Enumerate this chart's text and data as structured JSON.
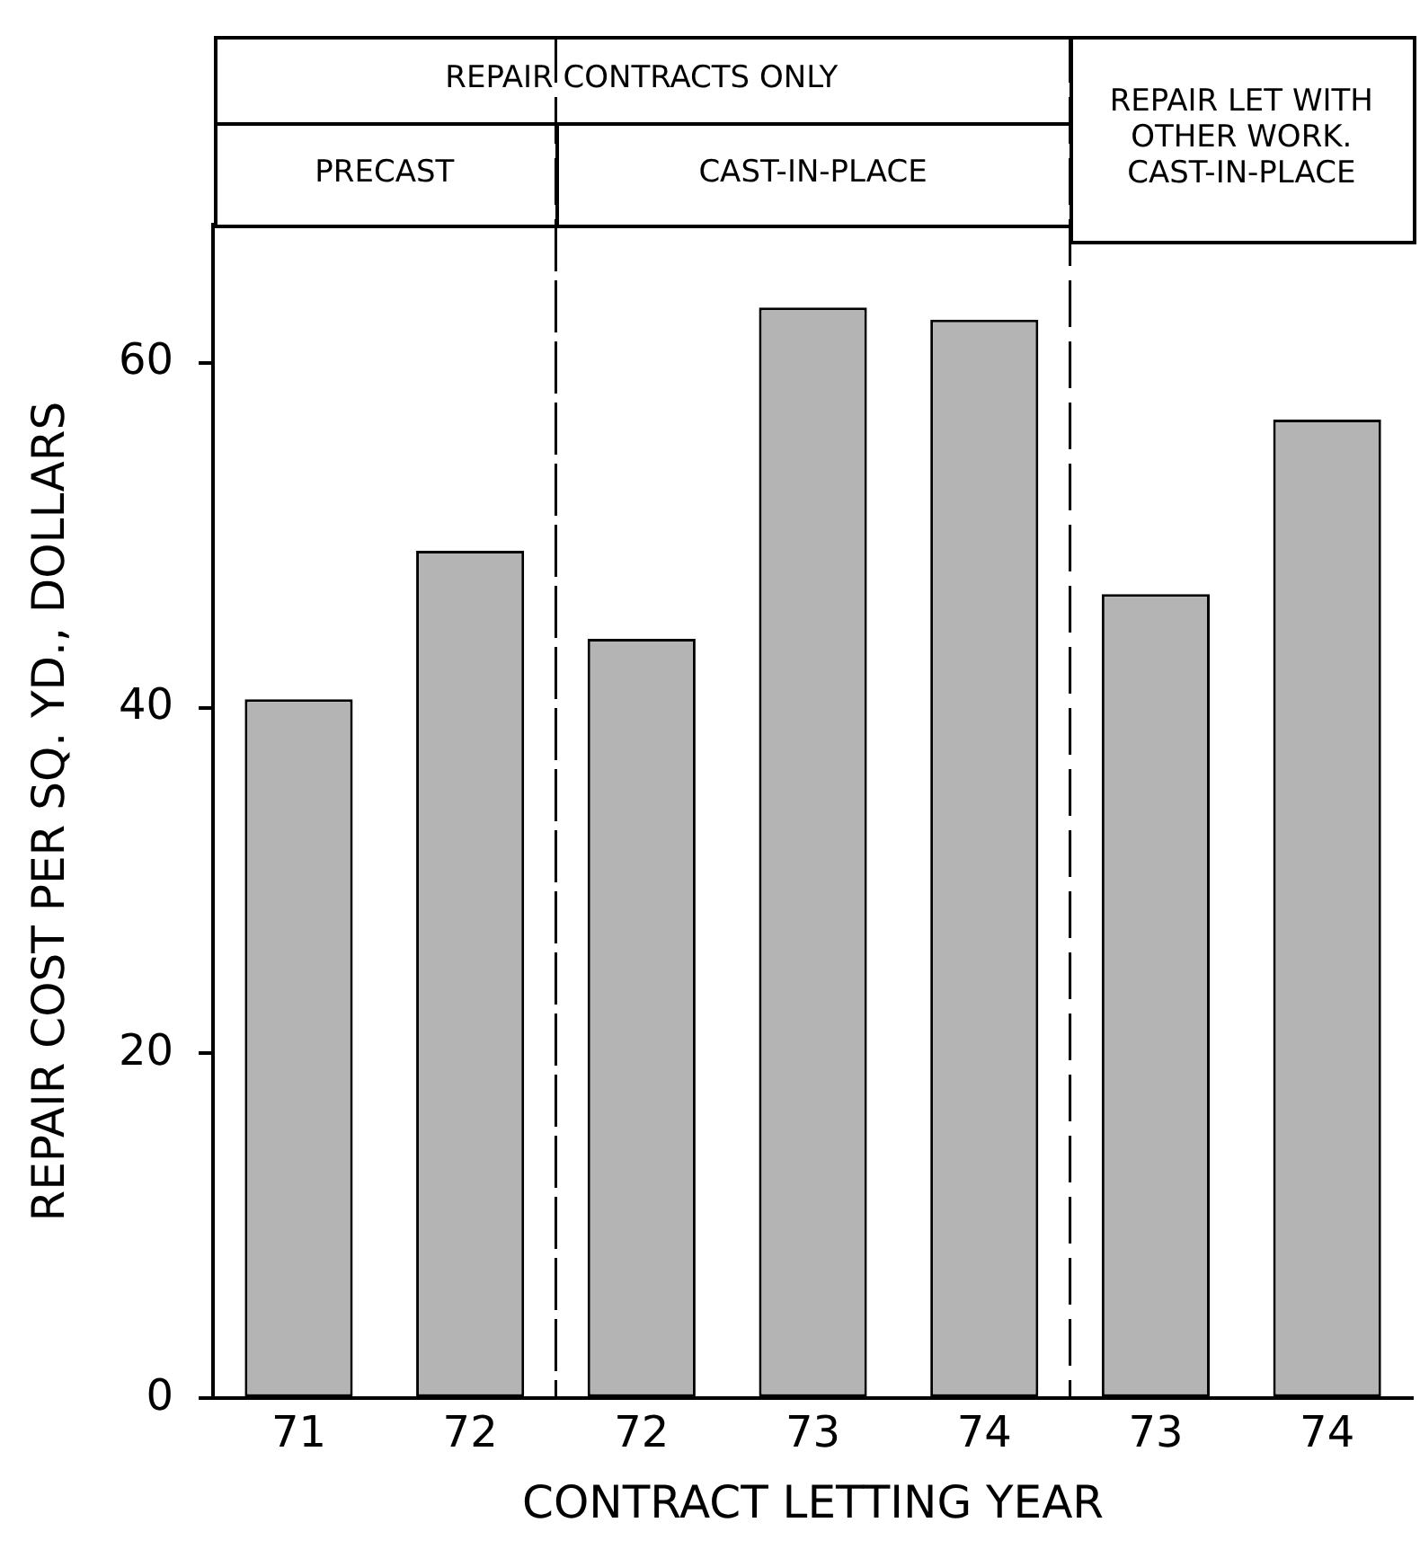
{
  "chart_data": {
    "type": "bar",
    "xlabel": "CONTRACT LETTING YEAR",
    "ylabel": "REPAIR COST PER SQ. YD., DOLLARS",
    "categories": [
      "71",
      "72",
      "72",
      "73",
      "74",
      "73",
      "74"
    ],
    "values": [
      40.5,
      49.1,
      44.0,
      63.2,
      62.5,
      46.6,
      56.7
    ],
    "color": "#b4b4b4",
    "ylim": [
      0,
      68
    ],
    "yticks": [
      0,
      20,
      40,
      60
    ],
    "annotations": [
      "REPAIR CONTRACTS ONLY",
      "PRECAST",
      "CAST-IN-PLACE",
      "REPAIR LET WITH OTHER WORK. CAST-IN-PLACE"
    ],
    "legend": false
  }
}
